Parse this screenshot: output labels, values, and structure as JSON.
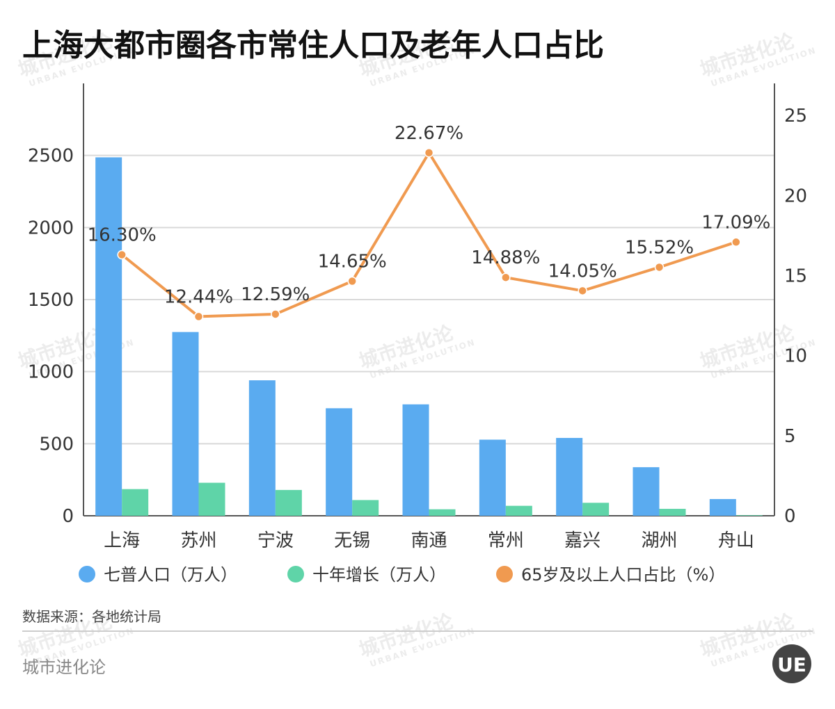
{
  "title": "上海大都市圈各市常住人口及老年人口占比",
  "source": "数据来源：各地统计局",
  "footer": "城市进化论",
  "watermark": {
    "main": "城市进化论",
    "sub": "URBAN EVOLUTION"
  },
  "logo_text": "UE",
  "colors": {
    "population": "#5aabf0",
    "growth": "#5fd4a8",
    "elderly": "#f09a50",
    "grid": "#d9d9d9",
    "axis": "#555555"
  },
  "chart_data": {
    "type": "bar",
    "categories": [
      "上海",
      "苏州",
      "宁波",
      "无锡",
      "南通",
      "常州",
      "嘉兴",
      "湖州",
      "舟山"
    ],
    "series": [
      {
        "name": "七普人口（万人）",
        "type": "bar",
        "axis": "left",
        "values": [
          2487,
          1275,
          940,
          746,
          773,
          528,
          540,
          337,
          116
        ]
      },
      {
        "name": "十年增长（万人）",
        "type": "bar",
        "axis": "left",
        "values": [
          185,
          229,
          179,
          109,
          45,
          69,
          90,
          48,
          4
        ]
      },
      {
        "name": "65岁及以上人口占比（%）",
        "type": "line",
        "axis": "right",
        "values": [
          16.3,
          12.44,
          12.59,
          14.65,
          22.67,
          14.88,
          14.05,
          15.52,
          17.09
        ],
        "labels": [
          "16.30%",
          "12.44%",
          "12.59%",
          "14.65%",
          "22.67%",
          "14.88%",
          "14.05%",
          "15.52%",
          "17.09%"
        ]
      }
    ],
    "y_left": {
      "min": 0,
      "max": 3000,
      "ticks": [
        0,
        500,
        1000,
        1500,
        2000,
        2500
      ]
    },
    "y_right": {
      "min": 0,
      "max": 27,
      "ticks": [
        0,
        5,
        10,
        15,
        20,
        25
      ]
    },
    "legend_position": "bottom",
    "grid": true
  }
}
